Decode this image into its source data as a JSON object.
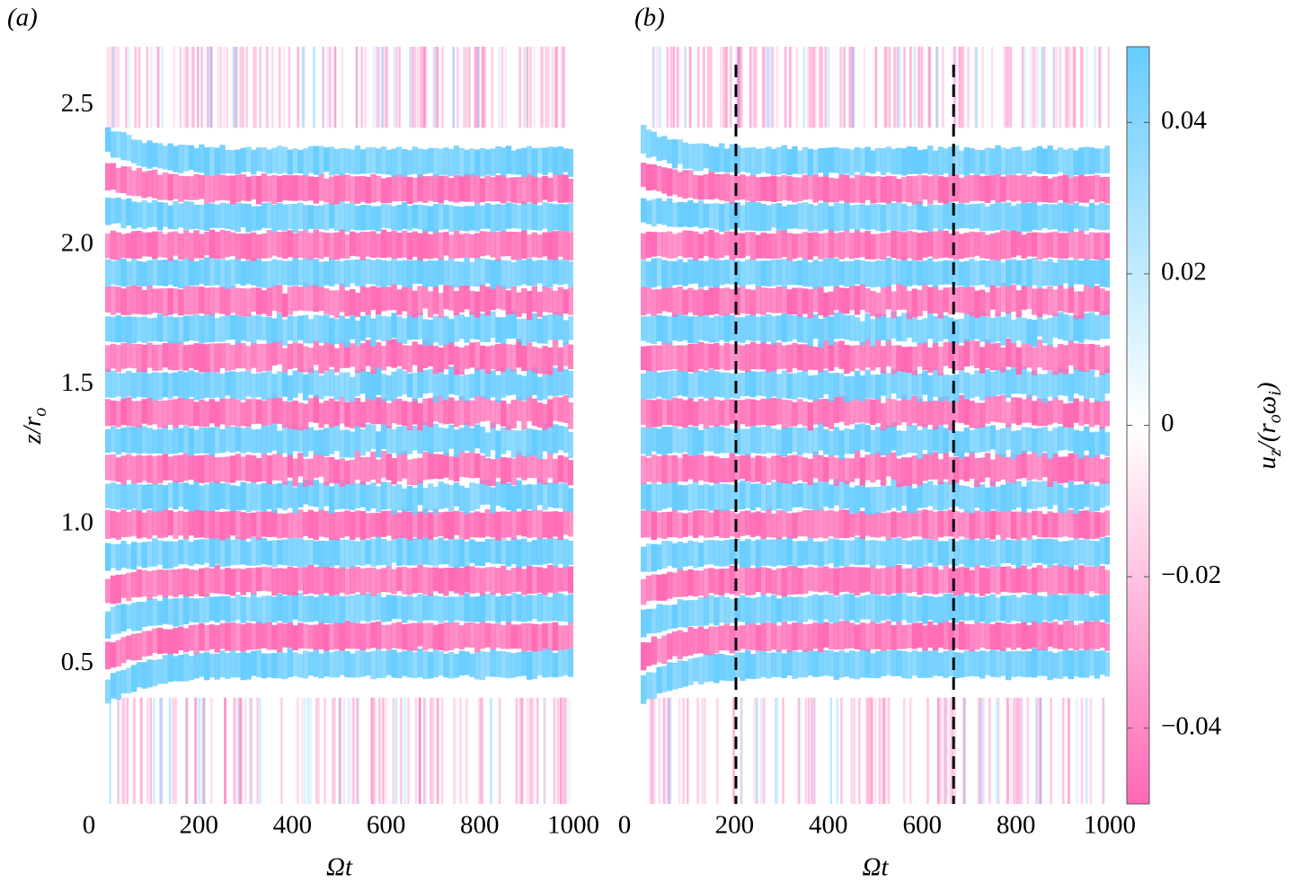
{
  "chart_data": [
    {
      "type": "heatmap",
      "panel_label": "(a)",
      "xlabel": "Ωt",
      "ylabel": [
        "z/r",
        "o"
      ],
      "xlim": [
        0,
        1000
      ],
      "ylim": [
        0,
        2.71
      ],
      "xticks": [
        0,
        200,
        400,
        600,
        800,
        1000
      ],
      "yticks": [
        0.5,
        {
          "value": 1,
          "label": "1.0"
        },
        1.5,
        {
          "value": 2,
          "label": "2.0"
        },
        2.5
      ]
    },
    {
      "type": "heatmap",
      "panel_label": "(b)",
      "xlabel": "Ωt",
      "xlim": [
        0,
        1000
      ],
      "ylim": [
        0,
        2.71
      ],
      "xticks": [
        0,
        200,
        400,
        600,
        800,
        1000
      ],
      "vlines": [
        203,
        667
      ],
      "colorbar": {
        "label": [
          "u",
          "z",
          "/(r",
          "o",
          "ω",
          "i",
          ")"
        ],
        "clim": [
          -0.05,
          0.05
        ],
        "ticks": [
          0.04,
          0.02,
          0,
          {
            "value": -0.02,
            "label": "−0.02"
          },
          {
            "value": -0.04,
            "label": "−0.04"
          }
        ],
        "colormap": [
          "#ff69b4",
          "#ffffff",
          "#66ccff"
        ]
      }
    }
  ]
}
